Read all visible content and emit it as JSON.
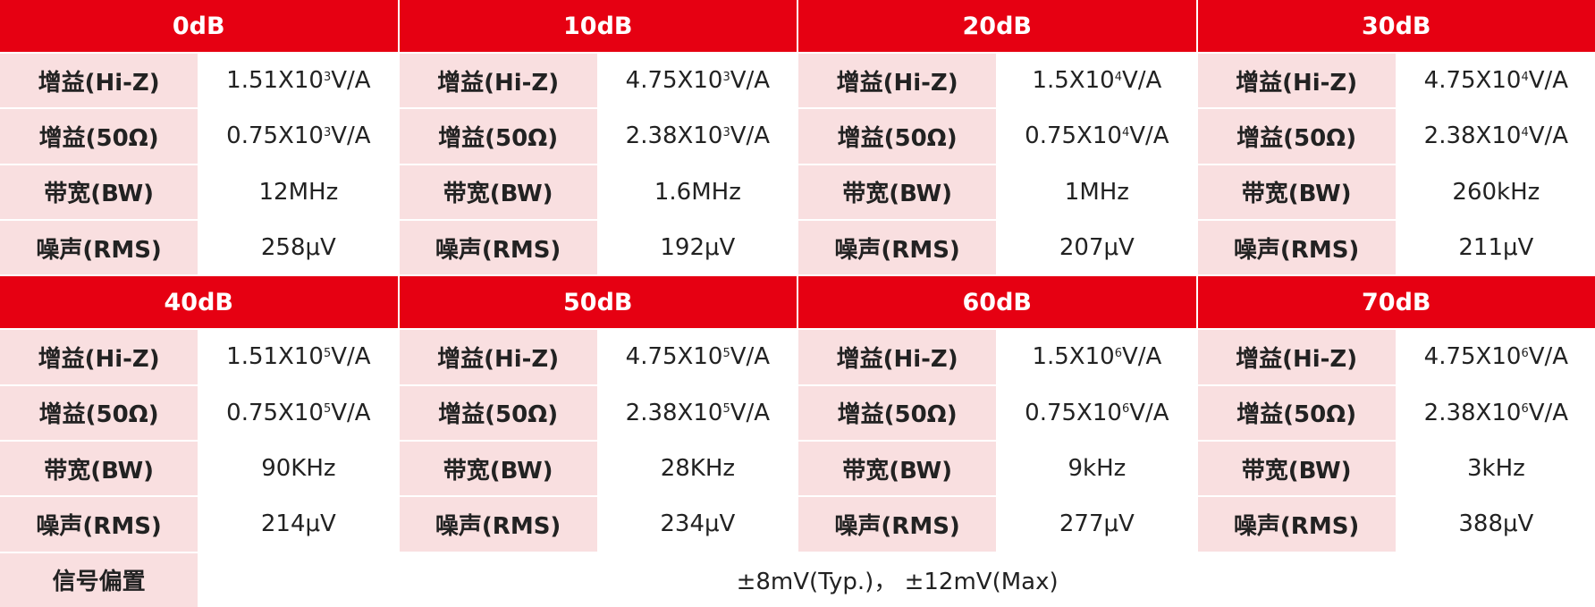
{
  "blocks": [
    {
      "title": "0dB",
      "rows": [
        {
          "label": "增益(Hi-Z)",
          "value": {
            "base": "1.51X10",
            "exp": "3",
            "unit": "V/A"
          }
        },
        {
          "label": "增益(50Ω)",
          "value": {
            "base": "0.75X10",
            "exp": "3",
            "unit": "V/A"
          }
        },
        {
          "label": "带宽(BW)",
          "value": "12MHz"
        },
        {
          "label": "噪声(RMS)",
          "value": "258μV"
        }
      ]
    },
    {
      "title": "10dB",
      "rows": [
        {
          "label": "增益(Hi-Z)",
          "value": {
            "base": "4.75X10",
            "exp": "3",
            "unit": "V/A"
          }
        },
        {
          "label": "增益(50Ω)",
          "value": {
            "base": "2.38X10",
            "exp": "3",
            "unit": "V/A"
          }
        },
        {
          "label": "带宽(BW)",
          "value": "1.6MHz"
        },
        {
          "label": "噪声(RMS)",
          "value": "192μV"
        }
      ]
    },
    {
      "title": "20dB",
      "rows": [
        {
          "label": "增益(Hi-Z)",
          "value": {
            "base": "1.5X10",
            "exp": "4",
            "unit": "V/A"
          }
        },
        {
          "label": "增益(50Ω)",
          "value": {
            "base": "0.75X10",
            "exp": "4",
            "unit": "V/A"
          }
        },
        {
          "label": "带宽(BW)",
          "value": "1MHz"
        },
        {
          "label": "噪声(RMS)",
          "value": "207μV"
        }
      ]
    },
    {
      "title": "30dB",
      "rows": [
        {
          "label": "增益(Hi-Z)",
          "value": {
            "base": "4.75X10",
            "exp": "4",
            "unit": "V/A"
          }
        },
        {
          "label": "增益(50Ω)",
          "value": {
            "base": "2.38X10",
            "exp": "4",
            "unit": "V/A"
          }
        },
        {
          "label": "带宽(BW)",
          "value": "260kHz"
        },
        {
          "label": "噪声(RMS)",
          "value": "211μV"
        }
      ]
    },
    {
      "title": "40dB",
      "rows": [
        {
          "label": "增益(Hi-Z)",
          "value": {
            "base": "1.51X10",
            "exp": "5",
            "unit": "V/A"
          }
        },
        {
          "label": "增益(50Ω)",
          "value": {
            "base": "0.75X10",
            "exp": "5",
            "unit": "V/A"
          }
        },
        {
          "label": "带宽(BW)",
          "value": "90KHz"
        },
        {
          "label": "噪声(RMS)",
          "value": "214μV"
        }
      ]
    },
    {
      "title": "50dB",
      "rows": [
        {
          "label": "增益(Hi-Z)",
          "value": {
            "base": "4.75X10",
            "exp": "5",
            "unit": "V/A"
          }
        },
        {
          "label": "增益(50Ω)",
          "value": {
            "base": "2.38X10",
            "exp": "5",
            "unit": "V/A"
          }
        },
        {
          "label": "带宽(BW)",
          "value": "28KHz"
        },
        {
          "label": "噪声(RMS)",
          "value": "234μV"
        }
      ]
    },
    {
      "title": "60dB",
      "rows": [
        {
          "label": "增益(Hi-Z)",
          "value": {
            "base": "1.5X10",
            "exp": "6",
            "unit": "V/A"
          }
        },
        {
          "label": "增益(50Ω)",
          "value": {
            "base": "0.75X10",
            "exp": "6",
            "unit": "V/A"
          }
        },
        {
          "label": "带宽(BW)",
          "value": "9kHz"
        },
        {
          "label": "噪声(RMS)",
          "value": "277μV"
        }
      ]
    },
    {
      "title": "70dB",
      "rows": [
        {
          "label": "增益(Hi-Z)",
          "value": {
            "base": "4.75X10",
            "exp": "6",
            "unit": "V/A"
          }
        },
        {
          "label": "增益(50Ω)",
          "value": {
            "base": "2.38X10",
            "exp": "6",
            "unit": "V/A"
          }
        },
        {
          "label": "带宽(BW)",
          "value": "3kHz"
        },
        {
          "label": "噪声(RMS)",
          "value": "388μV"
        }
      ]
    }
  ],
  "footer": {
    "label": "信号偏置",
    "value": "±8mV(Typ.)， ±12mV(Max)"
  }
}
